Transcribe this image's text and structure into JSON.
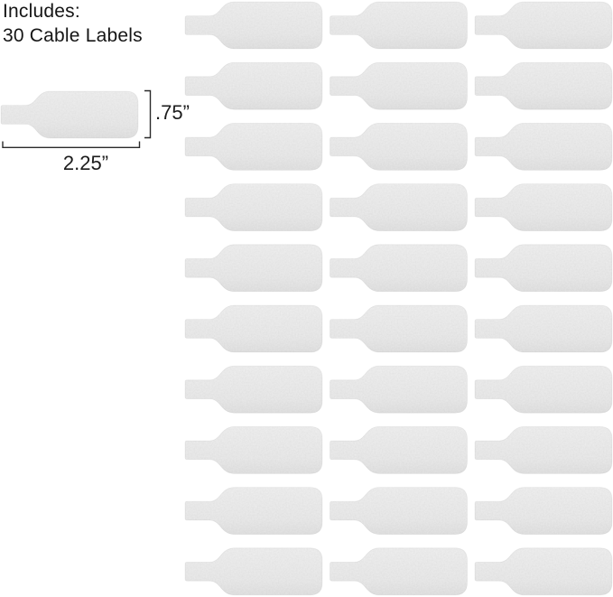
{
  "header": {
    "line1": "Includes:",
    "line2": "30 Cable Labels"
  },
  "sample_label": {
    "height_dimension": ".75”",
    "width_dimension": "2.25”"
  },
  "labels_grid": {
    "count": 30,
    "rows": 10,
    "columns": 3
  },
  "colors": {
    "background": "#ffffff",
    "label_fill": "#ececec",
    "label_fill_bottom": "#e5e5e5",
    "text": "#151515",
    "dimension_line": "#2a2a2a"
  }
}
